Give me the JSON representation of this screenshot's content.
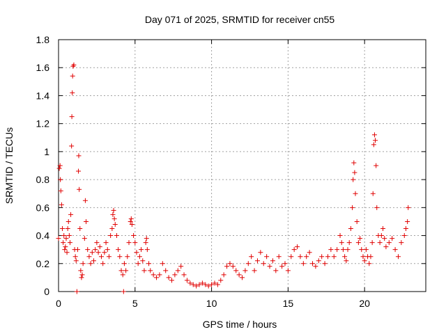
{
  "chart_data": {
    "type": "scatter",
    "title": "Day 071 of 2025, SRMTID for receiver cn55",
    "xlabel": "GPS time / hours",
    "ylabel": "SRMTID / TECUs",
    "xlim": [
      0,
      24
    ],
    "ylim": [
      0,
      1.8
    ],
    "xticks": [
      0,
      5,
      10,
      15,
      20
    ],
    "xtick_labels": [
      "0",
      "5",
      "10",
      "15",
      "20"
    ],
    "yticks": [
      0,
      0.2,
      0.4,
      0.6,
      0.8,
      1.0,
      1.2,
      1.4,
      1.6,
      1.8
    ],
    "ytick_labels": [
      "0",
      "0.2",
      "0.4",
      "0.6",
      "0.8",
      "1",
      "1.2",
      "1.4",
      "1.6",
      "1.8"
    ],
    "grid": true,
    "marker": "+",
    "color": "#e00000",
    "series": [
      {
        "name": "SRMTID",
        "points": [
          [
            0.0,
            0.38
          ],
          [
            0.05,
            0.88
          ],
          [
            0.1,
            0.9
          ],
          [
            0.12,
            0.8
          ],
          [
            0.15,
            0.72
          ],
          [
            0.2,
            0.62
          ],
          [
            0.25,
            0.45
          ],
          [
            0.3,
            0.35
          ],
          [
            0.35,
            0.4
          ],
          [
            0.4,
            0.3
          ],
          [
            0.45,
            0.32
          ],
          [
            0.5,
            0.38
          ],
          [
            0.55,
            0.28
          ],
          [
            0.6,
            0.45
          ],
          [
            0.65,
            0.5
          ],
          [
            0.7,
            0.4
          ],
          [
            0.75,
            0.35
          ],
          [
            0.8,
            0.55
          ],
          [
            0.85,
            1.04
          ],
          [
            0.87,
            1.25
          ],
          [
            0.9,
            1.42
          ],
          [
            0.92,
            1.54
          ],
          [
            0.95,
            1.61
          ],
          [
            1.0,
            1.62
          ],
          [
            1.05,
            0.3
          ],
          [
            1.1,
            0.25
          ],
          [
            1.15,
            0.22
          ],
          [
            1.2,
            0.0
          ],
          [
            1.25,
            0.3
          ],
          [
            1.3,
            0.86
          ],
          [
            1.32,
            0.97
          ],
          [
            1.35,
            0.73
          ],
          [
            1.4,
            0.45
          ],
          [
            1.45,
            0.15
          ],
          [
            1.5,
            0.1
          ],
          [
            1.55,
            0.12
          ],
          [
            1.6,
            0.2
          ],
          [
            1.7,
            0.38
          ],
          [
            1.75,
            0.65
          ],
          [
            1.8,
            0.5
          ],
          [
            1.9,
            0.3
          ],
          [
            2.0,
            0.25
          ],
          [
            2.1,
            0.2
          ],
          [
            2.2,
            0.28
          ],
          [
            2.3,
            0.22
          ],
          [
            2.4,
            0.3
          ],
          [
            2.5,
            0.35
          ],
          [
            2.6,
            0.28
          ],
          [
            2.7,
            0.32
          ],
          [
            2.8,
            0.25
          ],
          [
            2.9,
            0.2
          ],
          [
            3.0,
            0.28
          ],
          [
            3.1,
            0.35
          ],
          [
            3.2,
            0.3
          ],
          [
            3.3,
            0.25
          ],
          [
            3.4,
            0.4
          ],
          [
            3.5,
            0.45
          ],
          [
            3.55,
            0.55
          ],
          [
            3.6,
            0.58
          ],
          [
            3.65,
            0.52
          ],
          [
            3.7,
            0.48
          ],
          [
            3.8,
            0.4
          ],
          [
            3.9,
            0.3
          ],
          [
            4.0,
            0.25
          ],
          [
            4.1,
            0.15
          ],
          [
            4.2,
            0.12
          ],
          [
            4.25,
            0.0
          ],
          [
            4.3,
            0.2
          ],
          [
            4.4,
            0.15
          ],
          [
            4.5,
            0.25
          ],
          [
            4.6,
            0.35
          ],
          [
            4.7,
            0.5
          ],
          [
            4.75,
            0.52
          ],
          [
            4.8,
            0.48
          ],
          [
            4.9,
            0.4
          ],
          [
            5.0,
            0.35
          ],
          [
            5.1,
            0.28
          ],
          [
            5.2,
            0.2
          ],
          [
            5.3,
            0.25
          ],
          [
            5.4,
            0.3
          ],
          [
            5.5,
            0.22
          ],
          [
            5.6,
            0.15
          ],
          [
            5.7,
            0.35
          ],
          [
            5.75,
            0.38
          ],
          [
            5.8,
            0.3
          ],
          [
            5.9,
            0.2
          ],
          [
            6.0,
            0.15
          ],
          [
            6.2,
            0.12
          ],
          [
            6.4,
            0.1
          ],
          [
            6.6,
            0.12
          ],
          [
            6.8,
            0.2
          ],
          [
            7.0,
            0.15
          ],
          [
            7.2,
            0.1
          ],
          [
            7.4,
            0.08
          ],
          [
            7.6,
            0.12
          ],
          [
            7.8,
            0.15
          ],
          [
            8.0,
            0.18
          ],
          [
            8.2,
            0.12
          ],
          [
            8.4,
            0.08
          ],
          [
            8.6,
            0.06
          ],
          [
            8.8,
            0.05
          ],
          [
            9.0,
            0.04
          ],
          [
            9.2,
            0.05
          ],
          [
            9.4,
            0.06
          ],
          [
            9.6,
            0.05
          ],
          [
            9.8,
            0.04
          ],
          [
            10.0,
            0.05
          ],
          [
            10.2,
            0.06
          ],
          [
            10.4,
            0.05
          ],
          [
            10.6,
            0.08
          ],
          [
            10.8,
            0.12
          ],
          [
            11.0,
            0.18
          ],
          [
            11.2,
            0.2
          ],
          [
            11.4,
            0.18
          ],
          [
            11.6,
            0.15
          ],
          [
            11.8,
            0.12
          ],
          [
            12.0,
            0.1
          ],
          [
            12.2,
            0.15
          ],
          [
            12.4,
            0.2
          ],
          [
            12.6,
            0.25
          ],
          [
            12.8,
            0.15
          ],
          [
            13.0,
            0.22
          ],
          [
            13.2,
            0.28
          ],
          [
            13.4,
            0.2
          ],
          [
            13.6,
            0.25
          ],
          [
            13.8,
            0.18
          ],
          [
            14.0,
            0.22
          ],
          [
            14.2,
            0.15
          ],
          [
            14.4,
            0.25
          ],
          [
            14.6,
            0.18
          ],
          [
            14.8,
            0.2
          ],
          [
            15.0,
            0.15
          ],
          [
            15.2,
            0.25
          ],
          [
            15.4,
            0.3
          ],
          [
            15.6,
            0.32
          ],
          [
            15.8,
            0.25
          ],
          [
            16.0,
            0.2
          ],
          [
            16.2,
            0.25
          ],
          [
            16.4,
            0.28
          ],
          [
            16.6,
            0.2
          ],
          [
            16.8,
            0.18
          ],
          [
            17.0,
            0.22
          ],
          [
            17.2,
            0.25
          ],
          [
            17.4,
            0.2
          ],
          [
            17.6,
            0.25
          ],
          [
            17.8,
            0.3
          ],
          [
            18.0,
            0.25
          ],
          [
            18.2,
            0.3
          ],
          [
            18.4,
            0.4
          ],
          [
            18.5,
            0.35
          ],
          [
            18.6,
            0.3
          ],
          [
            18.7,
            0.25
          ],
          [
            18.8,
            0.22
          ],
          [
            18.9,
            0.3
          ],
          [
            19.0,
            0.35
          ],
          [
            19.1,
            0.45
          ],
          [
            19.2,
            0.6
          ],
          [
            19.25,
            0.8
          ],
          [
            19.3,
            0.92
          ],
          [
            19.35,
            0.85
          ],
          [
            19.4,
            0.7
          ],
          [
            19.5,
            0.5
          ],
          [
            19.6,
            0.35
          ],
          [
            19.7,
            0.38
          ],
          [
            19.8,
            0.3
          ],
          [
            19.9,
            0.25
          ],
          [
            20.0,
            0.22
          ],
          [
            20.1,
            0.3
          ],
          [
            20.2,
            0.25
          ],
          [
            20.3,
            0.2
          ],
          [
            20.4,
            0.25
          ],
          [
            20.5,
            0.35
          ],
          [
            20.55,
            0.7
          ],
          [
            20.6,
            1.05
          ],
          [
            20.65,
            1.12
          ],
          [
            20.7,
            1.08
          ],
          [
            20.75,
            0.9
          ],
          [
            20.8,
            0.6
          ],
          [
            20.9,
            0.4
          ],
          [
            21.0,
            0.35
          ],
          [
            21.1,
            0.4
          ],
          [
            21.2,
            0.45
          ],
          [
            21.3,
            0.38
          ],
          [
            21.4,
            0.32
          ],
          [
            21.6,
            0.35
          ],
          [
            21.8,
            0.38
          ],
          [
            22.0,
            0.3
          ],
          [
            22.2,
            0.25
          ],
          [
            22.4,
            0.35
          ],
          [
            22.6,
            0.4
          ],
          [
            22.7,
            0.45
          ],
          [
            22.8,
            0.5
          ],
          [
            22.85,
            0.6
          ]
        ]
      }
    ]
  }
}
